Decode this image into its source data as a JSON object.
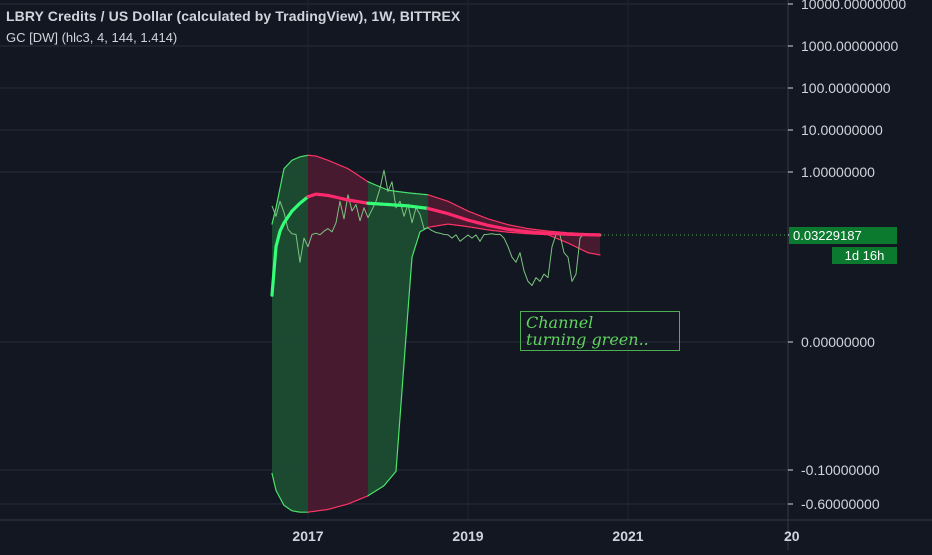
{
  "legend": {
    "title": "LBRY Credits / US Dollar (calculated by TradingView), 1W, BITTREX",
    "study": "GC [DW] (hlc3, 4, 144, 1.414)"
  },
  "price_tag": {
    "value": "0.03229187",
    "countdown": "1d 16h"
  },
  "note": {
    "line1": "Channel",
    "line2": "turning green.."
  },
  "colors": {
    "background": "#131722",
    "price_line": "#7bc47f",
    "band_green_fill": "#1b4d33",
    "band_red_fill": "#4a1a30",
    "band_edge_green": "#4be36a",
    "band_edge_red": "#ff3366",
    "mid_green": "#33ff77",
    "mid_red": "#ff2a6d",
    "tag_bg": "#0b7a2e",
    "note_color": "#5fd35f"
  },
  "chart_data": {
    "type": "line",
    "title": "LBRY Credits / US Dollar (calculated by TradingView), 1W, BITTREX",
    "symbol": "LBRY Credits / US Dollar",
    "interval": "1W",
    "exchange": "BITTREX",
    "y_scale": "log",
    "x_ticks": [
      "2017",
      "2019",
      "2021",
      "20"
    ],
    "y_ticks": [
      "10000.00000000",
      "1000.00000000",
      "100.00000000",
      "10.00000000",
      "1.00000000",
      "0.00000000",
      "-0.10000000",
      "-0.60000000"
    ],
    "last_price": 0.03229187,
    "indicator": {
      "name": "GC [DW]",
      "params": [
        "hlc3",
        4,
        144,
        1.414
      ]
    },
    "regions": [
      {
        "from": 2016.55,
        "to": 2017.0,
        "color": "green"
      },
      {
        "from": 2017.0,
        "to": 2017.75,
        "color": "red"
      },
      {
        "from": 2017.75,
        "to": 2018.5,
        "color": "green"
      },
      {
        "from": 2018.5,
        "to": 2020.65,
        "color": "red"
      }
    ],
    "series": [
      {
        "name": "price",
        "points": [
          [
            2016.55,
            0.48
          ],
          [
            2016.6,
            0.32
          ],
          [
            2016.65,
            0.55
          ],
          [
            2016.7,
            0.38
          ],
          [
            2016.75,
            0.12
          ],
          [
            2016.8,
            0.05
          ],
          [
            2016.85,
            0.04
          ],
          [
            2016.9,
            0.018
          ],
          [
            2016.95,
            0.03
          ],
          [
            2017.0,
            0.025
          ],
          [
            2017.05,
            0.04
          ],
          [
            2017.1,
            0.06
          ],
          [
            2017.15,
            0.035
          ],
          [
            2017.2,
            0.09
          ],
          [
            2017.25,
            0.13
          ],
          [
            2017.3,
            0.08
          ],
          [
            2017.35,
            0.22
          ],
          [
            2017.4,
            0.55
          ],
          [
            2017.45,
            0.28
          ],
          [
            2017.5,
            0.65
          ],
          [
            2017.55,
            0.4
          ],
          [
            2017.6,
            0.5
          ],
          [
            2017.65,
            0.25
          ],
          [
            2017.7,
            0.45
          ],
          [
            2017.75,
            0.3
          ],
          [
            2017.8,
            0.42
          ],
          [
            2017.85,
            0.55
          ],
          [
            2017.9,
            0.75
          ],
          [
            2017.95,
            1.1
          ],
          [
            2018.0,
            0.7
          ],
          [
            2018.05,
            0.85
          ],
          [
            2018.1,
            0.45
          ],
          [
            2018.15,
            0.55
          ],
          [
            2018.2,
            0.32
          ],
          [
            2018.25,
            0.5
          ],
          [
            2018.3,
            0.22
          ],
          [
            2018.35,
            0.45
          ],
          [
            2018.4,
            0.35
          ],
          [
            2018.45,
            0.13
          ],
          [
            2018.5,
            0.14
          ],
          [
            2018.55,
            0.1
          ],
          [
            2018.6,
            0.07
          ],
          [
            2018.65,
            0.06
          ],
          [
            2018.7,
            0.04
          ],
          [
            2018.75,
            0.035
          ],
          [
            2018.8,
            0.03
          ],
          [
            2018.85,
            0.035
          ],
          [
            2018.9,
            0.028
          ],
          [
            2018.95,
            0.03
          ],
          [
            2019.0,
            0.032
          ],
          [
            2019.05,
            0.03
          ],
          [
            2019.1,
            0.034
          ],
          [
            2019.15,
            0.028
          ],
          [
            2019.2,
            0.038
          ],
          [
            2019.25,
            0.045
          ],
          [
            2019.3,
            0.052
          ],
          [
            2019.35,
            0.04
          ],
          [
            2019.4,
            0.045
          ],
          [
            2019.45,
            0.03
          ],
          [
            2019.5,
            0.025
          ],
          [
            2019.55,
            0.02
          ],
          [
            2019.6,
            0.018
          ],
          [
            2019.65,
            0.022
          ],
          [
            2019.7,
            0.015
          ],
          [
            2019.75,
            0.012
          ],
          [
            2019.8,
            0.011
          ],
          [
            2019.85,
            0.013
          ],
          [
            2019.9,
            0.012
          ],
          [
            2019.95,
            0.014
          ],
          [
            2020.0,
            0.013
          ],
          [
            2020.05,
            0.025
          ],
          [
            2020.1,
            0.04
          ],
          [
            2020.15,
            0.035
          ],
          [
            2020.2,
            0.022
          ],
          [
            2020.25,
            0.02
          ],
          [
            2020.3,
            0.012
          ],
          [
            2020.35,
            0.014
          ],
          [
            2020.4,
            0.03
          ],
          [
            2020.45,
            0.055
          ],
          [
            2020.5,
            0.042
          ],
          [
            2020.55,
            0.048
          ],
          [
            2020.6,
            0.035
          ],
          [
            2020.65,
            0.032
          ]
        ]
      },
      {
        "name": "mid",
        "points": [
          [
            2016.55,
            0.005
          ],
          [
            2016.6,
            0.025
          ],
          [
            2016.65,
            0.09
          ],
          [
            2016.7,
            0.22
          ],
          [
            2016.8,
            0.4
          ],
          [
            2016.9,
            0.52
          ],
          [
            2017.0,
            0.62
          ],
          [
            2017.1,
            0.66
          ],
          [
            2017.25,
            0.64
          ],
          [
            2017.5,
            0.57
          ],
          [
            2017.75,
            0.52
          ],
          [
            2018.0,
            0.5
          ],
          [
            2018.25,
            0.48
          ],
          [
            2018.5,
            0.44
          ],
          [
            2018.75,
            0.36
          ],
          [
            2019.0,
            0.26
          ],
          [
            2019.25,
            0.18
          ],
          [
            2019.5,
            0.12
          ],
          [
            2019.75,
            0.082
          ],
          [
            2020.0,
            0.058
          ],
          [
            2020.25,
            0.043
          ],
          [
            2020.5,
            0.035
          ],
          [
            2020.65,
            0.032
          ]
        ]
      },
      {
        "name": "upper",
        "points": [
          [
            2016.55,
            0.2
          ],
          [
            2016.6,
            0.45
          ],
          [
            2016.7,
            1.2
          ],
          [
            2016.8,
            1.9
          ],
          [
            2016.9,
            2.3
          ],
          [
            2017.0,
            2.5
          ],
          [
            2017.1,
            2.4
          ],
          [
            2017.25,
            1.9
          ],
          [
            2017.5,
            1.2
          ],
          [
            2017.75,
            0.85
          ],
          [
            2018.0,
            0.72
          ],
          [
            2018.25,
            0.68
          ],
          [
            2018.5,
            0.65
          ],
          [
            2018.75,
            0.55
          ],
          [
            2019.0,
            0.4
          ],
          [
            2019.25,
            0.28
          ],
          [
            2019.5,
            0.19
          ],
          [
            2019.75,
            0.13
          ],
          [
            2020.0,
            0.092
          ],
          [
            2020.25,
            0.066
          ],
          [
            2020.5,
            0.052
          ],
          [
            2020.65,
            0.048
          ]
        ]
      },
      {
        "name": "lower",
        "points": [
          [
            2016.55,
            -0.15
          ],
          [
            2016.6,
            -0.4
          ],
          [
            2016.7,
            -0.62
          ],
          [
            2016.8,
            -0.7
          ],
          [
            2016.9,
            -0.72
          ],
          [
            2017.0,
            -0.72
          ],
          [
            2017.25,
            -0.68
          ],
          [
            2017.5,
            -0.6
          ],
          [
            2017.75,
            -0.48
          ],
          [
            2017.95,
            -0.33
          ],
          [
            2018.1,
            -0.12
          ],
          [
            2018.22,
            0.0
          ],
          [
            2018.3,
            0.02
          ],
          [
            2018.4,
            0.08
          ],
          [
            2018.5,
            0.15
          ],
          [
            2018.75,
            0.2
          ],
          [
            2019.0,
            0.16
          ],
          [
            2019.25,
            0.11
          ],
          [
            2019.5,
            0.075
          ],
          [
            2019.75,
            0.052
          ],
          [
            2020.0,
            0.036
          ],
          [
            2020.25,
            0.027
          ],
          [
            2020.5,
            0.022
          ],
          [
            2020.65,
            0.021
          ]
        ]
      }
    ]
  }
}
